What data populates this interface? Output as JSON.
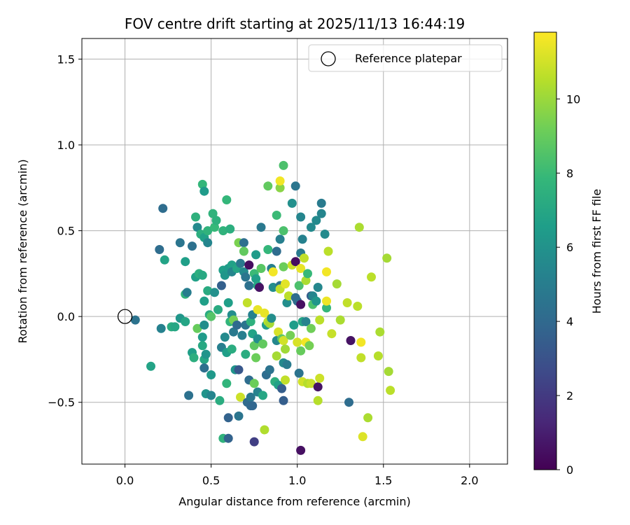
{
  "chart_data": {
    "type": "scatter",
    "title": "FOV centre drift starting at 2025/11/13 16:44:19",
    "xlabel": "Angular distance from reference (arcmin)",
    "ylabel": "Rotation from reference (arcmin)",
    "xlim": [
      -0.25,
      2.22
    ],
    "ylim": [
      -0.86,
      1.62
    ],
    "xticks": [
      0.0,
      0.5,
      1.0,
      1.5,
      2.0
    ],
    "xtick_labels": [
      "0.0",
      "0.5",
      "1.0",
      "1.5",
      "2.0"
    ],
    "yticks": [
      -0.5,
      0.0,
      0.5,
      1.0,
      1.5
    ],
    "ytick_labels": [
      "−0.5",
      "0.0",
      "0.5",
      "1.0",
      "1.5"
    ],
    "grid": true,
    "legend": {
      "placement": "top-right",
      "entries": [
        "Reference platepar"
      ]
    },
    "reference_point": {
      "x": 0.0,
      "y": 0.0,
      "label": "Reference platepar"
    },
    "colorbar": {
      "label": "Hours from first FF file",
      "range": [
        0,
        11.8
      ],
      "ticks": [
        0,
        2,
        4,
        6,
        8,
        10
      ],
      "tick_labels": [
        "0",
        "2",
        "4",
        "6",
        "8",
        "10"
      ],
      "colormap": "viridis"
    },
    "points": [
      [
        0.06,
        -0.02,
        4.5
      ],
      [
        0.15,
        -0.29,
        6.8
      ],
      [
        0.2,
        0.39,
        4.2
      ],
      [
        0.22,
        0.63,
        4.2
      ],
      [
        0.23,
        0.33,
        6.8
      ],
      [
        0.21,
        -0.07,
        5.2
      ],
      [
        0.27,
        -0.06,
        7.3
      ],
      [
        0.29,
        -0.06,
        7.0
      ],
      [
        0.32,
        0.43,
        4.6
      ],
      [
        0.32,
        -0.01,
        6.2
      ],
      [
        0.35,
        0.13,
        7.6
      ],
      [
        0.35,
        0.32,
        6.6
      ],
      [
        0.35,
        -0.03,
        6.9
      ],
      [
        0.36,
        0.14,
        5.0
      ],
      [
        0.37,
        -0.46,
        4.4
      ],
      [
        0.39,
        0.41,
        4.4
      ],
      [
        0.39,
        -0.21,
        6.6
      ],
      [
        0.4,
        -0.24,
        7.4
      ],
      [
        0.41,
        0.23,
        6.7
      ],
      [
        0.41,
        0.58,
        7.5
      ],
      [
        0.42,
        0.52,
        5.6
      ],
      [
        0.42,
        -0.07,
        9.0
      ],
      [
        0.43,
        0.25,
        7.4
      ],
      [
        0.44,
        0.48,
        7.4
      ],
      [
        0.45,
        0.77,
        7.8
      ],
      [
        0.45,
        0.24,
        7.1
      ],
      [
        0.45,
        -0.12,
        6.4
      ],
      [
        0.45,
        -0.17,
        7.1
      ],
      [
        0.46,
        0.46,
        6.7
      ],
      [
        0.46,
        0.73,
        6.4
      ],
      [
        0.46,
        0.09,
        6.6
      ],
      [
        0.46,
        -0.05,
        5.8
      ],
      [
        0.46,
        -0.25,
        7.0
      ],
      [
        0.46,
        -0.3,
        4.3
      ],
      [
        0.47,
        -0.22,
        6.1
      ],
      [
        0.47,
        -0.45,
        6.1
      ],
      [
        0.48,
        0.5,
        7.6
      ],
      [
        0.48,
        0.43,
        5.4
      ],
      [
        0.48,
        0.15,
        7.2
      ],
      [
        0.49,
        0.01,
        7.2
      ],
      [
        0.5,
        0.0,
        8.6
      ],
      [
        0.5,
        -0.34,
        6.3
      ],
      [
        0.5,
        -0.46,
        5.4
      ],
      [
        0.51,
        0.6,
        7.6
      ],
      [
        0.52,
        0.52,
        7.9
      ],
      [
        0.52,
        0.14,
        5.9
      ],
      [
        0.53,
        0.56,
        7.5
      ],
      [
        0.54,
        0.04,
        7.2
      ],
      [
        0.55,
        -0.49,
        7.3
      ],
      [
        0.56,
        0.18,
        3.6
      ],
      [
        0.56,
        -0.18,
        5.1
      ],
      [
        0.57,
        0.5,
        7.6
      ],
      [
        0.57,
        0.27,
        6.6
      ],
      [
        0.57,
        -0.71,
        7.6
      ],
      [
        0.58,
        0.24,
        6.2
      ],
      [
        0.58,
        -0.12,
        5.6
      ],
      [
        0.59,
        -0.39,
        7.7
      ],
      [
        0.59,
        0.68,
        7.8
      ],
      [
        0.59,
        -0.21,
        6.6
      ],
      [
        0.6,
        -0.59,
        3.7
      ],
      [
        0.6,
        0.08,
        6.6
      ],
      [
        0.6,
        -0.71,
        3.7
      ],
      [
        0.6,
        0.28,
        6.4
      ],
      [
        0.61,
        -0.03,
        7.7
      ],
      [
        0.61,
        0.51,
        7.4
      ],
      [
        0.62,
        0.3,
        6.7
      ],
      [
        0.62,
        -0.19,
        7.3
      ],
      [
        0.62,
        0.26,
        5.4
      ],
      [
        0.62,
        0.01,
        5.8
      ],
      [
        0.63,
        -0.02,
        9.3
      ],
      [
        0.63,
        -0.09,
        4.8
      ],
      [
        0.64,
        -0.31,
        6.1
      ],
      [
        0.65,
        0.28,
        6.9
      ],
      [
        0.65,
        -0.05,
        4.0
      ],
      [
        0.66,
        -0.31,
        3.2
      ],
      [
        0.66,
        -0.58,
        4.6
      ],
      [
        0.66,
        0.43,
        9.4
      ],
      [
        0.67,
        0.31,
        4.8
      ],
      [
        0.67,
        -0.47,
        10.9
      ],
      [
        0.68,
        -0.11,
        5.1
      ],
      [
        0.69,
        0.43,
        4.3
      ],
      [
        0.69,
        0.26,
        5.6
      ],
      [
        0.69,
        0.38,
        8.9
      ],
      [
        0.7,
        0.23,
        4.6
      ],
      [
        0.7,
        -0.05,
        4.5
      ],
      [
        0.7,
        -0.22,
        7.3
      ],
      [
        0.71,
        0.08,
        10.7
      ],
      [
        0.71,
        -0.5,
        4.1
      ],
      [
        0.72,
        -0.37,
        4.2
      ],
      [
        0.72,
        0.3,
        0.4
      ],
      [
        0.72,
        0.18,
        4.4
      ],
      [
        0.73,
        -0.52,
        4.0
      ],
      [
        0.73,
        -0.47,
        4.7
      ],
      [
        0.73,
        -0.03,
        7.5
      ],
      [
        0.74,
        0.01,
        5.2
      ],
      [
        0.74,
        -0.1,
        6.8
      ],
      [
        0.74,
        -0.52,
        3.9
      ],
      [
        0.75,
        -0.39,
        9.1
      ],
      [
        0.75,
        -0.17,
        8.8
      ],
      [
        0.75,
        0.25,
        8.0
      ],
      [
        0.75,
        -0.73,
        2.2
      ],
      [
        0.76,
        0.36,
        6.4
      ],
      [
        0.76,
        -0.24,
        9.1
      ],
      [
        0.76,
        0.22,
        6.6
      ],
      [
        0.77,
        0.04,
        11.4
      ],
      [
        0.77,
        -0.13,
        5.8
      ],
      [
        0.77,
        0.18,
        7.0
      ],
      [
        0.77,
        -0.44,
        5.3
      ],
      [
        0.78,
        0.17,
        0.6
      ],
      [
        0.79,
        0.52,
        4.8
      ],
      [
        0.79,
        0.28,
        8.7
      ],
      [
        0.8,
        -0.16,
        8.9
      ],
      [
        0.8,
        -0.46,
        7.0
      ],
      [
        0.81,
        0.02,
        11.4
      ],
      [
        0.81,
        -0.66,
        10.4
      ],
      [
        0.82,
        -0.34,
        4.2
      ],
      [
        0.82,
        -0.05,
        6.4
      ],
      [
        0.83,
        0.39,
        7.8
      ],
      [
        0.83,
        -0.03,
        10.6
      ],
      [
        0.83,
        0.76,
        8.9
      ],
      [
        0.84,
        -0.31,
        4.5
      ],
      [
        0.84,
        -0.04,
        10.2
      ],
      [
        0.85,
        -0.01,
        5.8
      ],
      [
        0.85,
        0.28,
        5.1
      ],
      [
        0.86,
        0.17,
        5.8
      ],
      [
        0.86,
        0.26,
        11.6
      ],
      [
        0.87,
        -0.38,
        7.4
      ],
      [
        0.88,
        -0.14,
        5.5
      ],
      [
        0.88,
        0.59,
        8.0
      ],
      [
        0.88,
        0.38,
        4.2
      ],
      [
        0.88,
        -0.23,
        10.2
      ],
      [
        0.89,
        -0.4,
        6.7
      ],
      [
        0.89,
        -0.09,
        11.1
      ],
      [
        0.9,
        0.45,
        5.1
      ],
      [
        0.9,
        0.18,
        4.4
      ],
      [
        0.9,
        0.16,
        10.7
      ],
      [
        0.9,
        0.75,
        9.7
      ],
      [
        0.9,
        0.79,
        11.6
      ],
      [
        0.91,
        -0.13,
        8.8
      ],
      [
        0.91,
        -0.42,
        3.5
      ],
      [
        0.92,
        0.88,
        8.4
      ],
      [
        0.92,
        0.5,
        8.4
      ],
      [
        0.92,
        0.29,
        9.1
      ],
      [
        0.92,
        -0.14,
        11.0
      ],
      [
        0.92,
        -0.27,
        5.6
      ],
      [
        0.92,
        -0.49,
        3.5
      ],
      [
        0.93,
        -0.37,
        10.7
      ],
      [
        0.93,
        -0.19,
        10.1
      ],
      [
        0.93,
        0.19,
        11.3
      ],
      [
        0.94,
        -0.28,
        4.9
      ],
      [
        0.94,
        0.08,
        5.8
      ],
      [
        0.95,
        0.12,
        10.6
      ],
      [
        0.96,
        -0.11,
        9.3
      ],
      [
        0.97,
        0.66,
        5.9
      ],
      [
        0.97,
        0.3,
        10.9
      ],
      [
        0.98,
        -0.05,
        6.5
      ],
      [
        0.99,
        0.76,
        4.6
      ],
      [
        0.99,
        0.32,
        0.4
      ],
      [
        0.99,
        0.11,
        4.2
      ],
      [
        1.0,
        0.09,
        4.2
      ],
      [
        1.0,
        -0.15,
        11.1
      ],
      [
        1.01,
        -0.33,
        4.5
      ],
      [
        1.01,
        0.18,
        8.4
      ],
      [
        1.02,
        0.58,
        5.4
      ],
      [
        1.02,
        0.37,
        4.9
      ],
      [
        1.02,
        -0.78,
        0.5
      ],
      [
        1.02,
        0.28,
        11.4
      ],
      [
        1.02,
        0.07,
        0.5
      ],
      [
        1.02,
        -0.2,
        9.0
      ],
      [
        1.03,
        0.45,
        5.2
      ],
      [
        1.03,
        -0.38,
        11.0
      ],
      [
        1.03,
        -0.03,
        6.9
      ],
      [
        1.04,
        0.34,
        10.7
      ],
      [
        1.05,
        -0.15,
        11.6
      ],
      [
        1.05,
        -0.03,
        5.3
      ],
      [
        1.05,
        0.21,
        10.3
      ],
      [
        1.06,
        -0.39,
        10.5
      ],
      [
        1.06,
        0.25,
        7.9
      ],
      [
        1.07,
        -0.17,
        9.3
      ],
      [
        1.08,
        0.52,
        5.6
      ],
      [
        1.08,
        0.12,
        3.4
      ],
      [
        1.08,
        -0.07,
        9.2
      ],
      [
        1.08,
        -0.39,
        10.8
      ],
      [
        1.09,
        0.12,
        5.4
      ],
      [
        1.09,
        0.07,
        8.4
      ],
      [
        1.11,
        0.56,
        5.6
      ],
      [
        1.11,
        0.09,
        6.2
      ],
      [
        1.12,
        0.17,
        5.5
      ],
      [
        1.12,
        -0.41,
        0.6
      ],
      [
        1.12,
        -0.49,
        10.5
      ],
      [
        1.13,
        -0.36,
        10.9
      ],
      [
        1.14,
        0.6,
        5.4
      ],
      [
        1.13,
        -0.02,
        10.6
      ],
      [
        1.14,
        0.66,
        4.9
      ],
      [
        1.16,
        0.48,
        5.6
      ],
      [
        1.17,
        0.05,
        7.8
      ],
      [
        1.17,
        0.26,
        11.6
      ],
      [
        1.17,
        0.09,
        11.5
      ],
      [
        1.18,
        0.38,
        10.6
      ],
      [
        1.2,
        -0.1,
        10.8
      ],
      [
        1.23,
        0.19,
        10.2
      ],
      [
        1.25,
        -0.02,
        10.3
      ],
      [
        1.29,
        0.08,
        10.7
      ],
      [
        1.3,
        -0.5,
        4.2
      ],
      [
        1.31,
        -0.14,
        0.6
      ],
      [
        1.35,
        0.06,
        10.6
      ],
      [
        1.36,
        0.52,
        10.3
      ],
      [
        1.37,
        -0.15,
        11.6
      ],
      [
        1.37,
        -0.24,
        10.7
      ],
      [
        1.38,
        -0.7,
        11.2
      ],
      [
        1.41,
        -0.59,
        10.3
      ],
      [
        1.43,
        0.23,
        10.6
      ],
      [
        1.47,
        -0.23,
        10.5
      ],
      [
        1.48,
        -0.09,
        10.3
      ],
      [
        1.52,
        0.34,
        10.2
      ],
      [
        1.53,
        -0.32,
        10.2
      ],
      [
        1.54,
        -0.43,
        10.6
      ]
    ]
  }
}
